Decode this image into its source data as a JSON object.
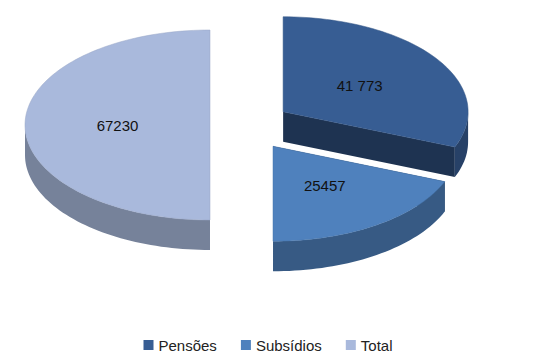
{
  "chart_data": {
    "type": "pie",
    "categories": [
      "Pensões",
      "Subsídios",
      "Total"
    ],
    "values": [
      41773,
      25457,
      67230
    ],
    "value_labels": [
      "41 773",
      "25457",
      "67230"
    ],
    "colors": [
      "#375d93",
      "#4f81bd",
      "#a9b9dc"
    ],
    "data_labels": true,
    "legend": "bottom"
  }
}
